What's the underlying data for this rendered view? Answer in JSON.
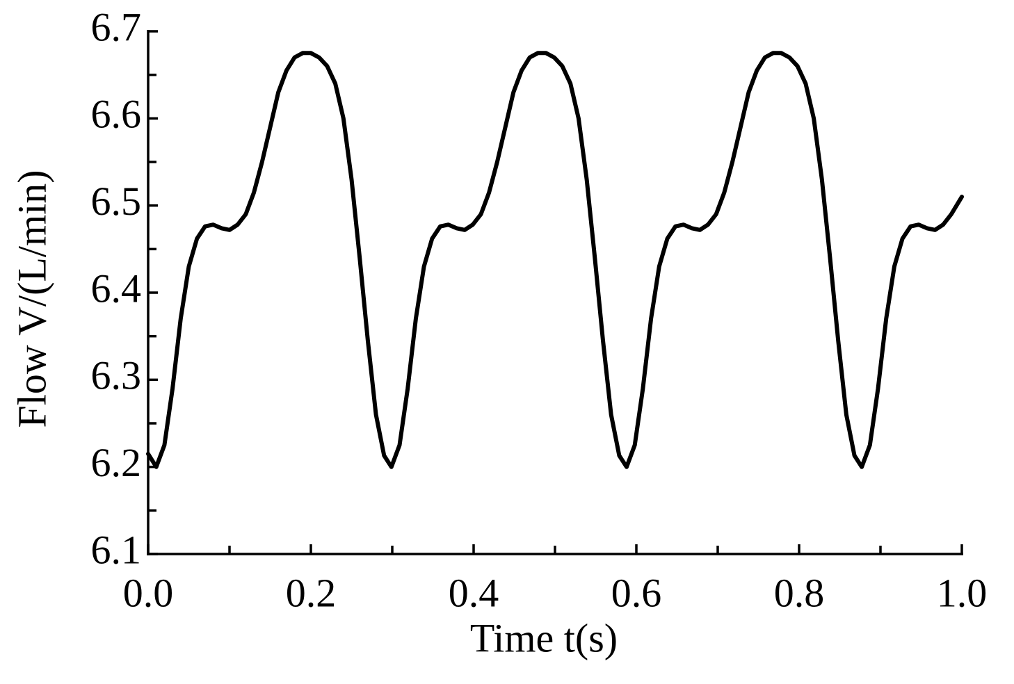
{
  "chart_data": {
    "type": "line",
    "x_label": "Time t(s)",
    "y_label": "Flow V/(L/min)",
    "xlim": [
      0,
      1.0
    ],
    "ylim": [
      6.1,
      6.7
    ],
    "xticks": [
      {
        "value": 0,
        "label": "0.0"
      },
      {
        "value": 0.2,
        "label": "0.2"
      },
      {
        "value": 0.4,
        "label": "0.4"
      },
      {
        "value": 0.6,
        "label": "0.6"
      },
      {
        "value": 0.8,
        "label": "0.8"
      },
      {
        "value": 1.0,
        "label": "1.0"
      }
    ],
    "xminorticks": [
      0.1,
      0.3,
      0.5,
      0.7,
      0.9
    ],
    "yticks": [
      6.1,
      6.2,
      6.3,
      6.4,
      6.5,
      6.6,
      6.7
    ],
    "yminorticks": [
      6.15,
      6.25,
      6.35,
      6.45,
      6.55,
      6.65
    ],
    "grid": false,
    "series": [
      {
        "color": "#000000",
        "x": [
          0,
          0.01,
          0.02,
          0.03,
          0.04,
          0.05,
          0.06,
          0.07,
          0.08,
          0.09,
          0.1,
          0.11,
          0.12,
          0.13,
          0.14,
          0.15,
          0.16,
          0.17,
          0.18,
          0.19,
          0.2,
          0.21,
          0.22,
          0.23,
          0.24,
          0.25,
          0.26,
          0.27,
          0.28,
          0.29,
          0.299,
          0.309,
          0.319,
          0.329,
          0.339,
          0.349,
          0.359,
          0.369,
          0.379,
          0.389,
          0.399,
          0.409,
          0.419,
          0.429,
          0.439,
          0.449,
          0.459,
          0.469,
          0.479,
          0.489,
          0.499,
          0.509,
          0.519,
          0.529,
          0.539,
          0.549,
          0.559,
          0.569,
          0.579,
          0.588,
          0.598,
          0.608,
          0.618,
          0.628,
          0.638,
          0.648,
          0.658,
          0.668,
          0.678,
          0.688,
          0.698,
          0.708,
          0.718,
          0.728,
          0.738,
          0.748,
          0.758,
          0.768,
          0.778,
          0.788,
          0.798,
          0.808,
          0.818,
          0.828,
          0.838,
          0.848,
          0.858,
          0.868,
          0.877,
          0.887,
          0.897,
          0.907,
          0.917,
          0.927,
          0.937,
          0.947,
          0.957,
          0.967,
          0.977,
          0.987,
          1.0
        ],
        "values": [
          6.215,
          6.2,
          6.225,
          6.29,
          6.37,
          6.43,
          6.462,
          6.476,
          6.478,
          6.474,
          6.472,
          6.478,
          6.49,
          6.515,
          6.55,
          6.59,
          6.63,
          6.655,
          6.67,
          6.675,
          6.675,
          6.67,
          6.66,
          6.64,
          6.6,
          6.53,
          6.44,
          6.345,
          6.26,
          6.213,
          6.2,
          6.225,
          6.29,
          6.37,
          6.43,
          6.462,
          6.476,
          6.478,
          6.474,
          6.472,
          6.478,
          6.49,
          6.515,
          6.55,
          6.59,
          6.63,
          6.655,
          6.67,
          6.675,
          6.675,
          6.67,
          6.66,
          6.64,
          6.6,
          6.53,
          6.44,
          6.345,
          6.26,
          6.213,
          6.2,
          6.225,
          6.29,
          6.37,
          6.43,
          6.462,
          6.476,
          6.478,
          6.474,
          6.472,
          6.478,
          6.49,
          6.515,
          6.55,
          6.59,
          6.63,
          6.655,
          6.67,
          6.675,
          6.675,
          6.67,
          6.66,
          6.64,
          6.6,
          6.53,
          6.44,
          6.345,
          6.26,
          6.213,
          6.2,
          6.225,
          6.29,
          6.37,
          6.43,
          6.462,
          6.476,
          6.478,
          6.474,
          6.472,
          6.478,
          6.49,
          6.51
        ]
      }
    ]
  }
}
